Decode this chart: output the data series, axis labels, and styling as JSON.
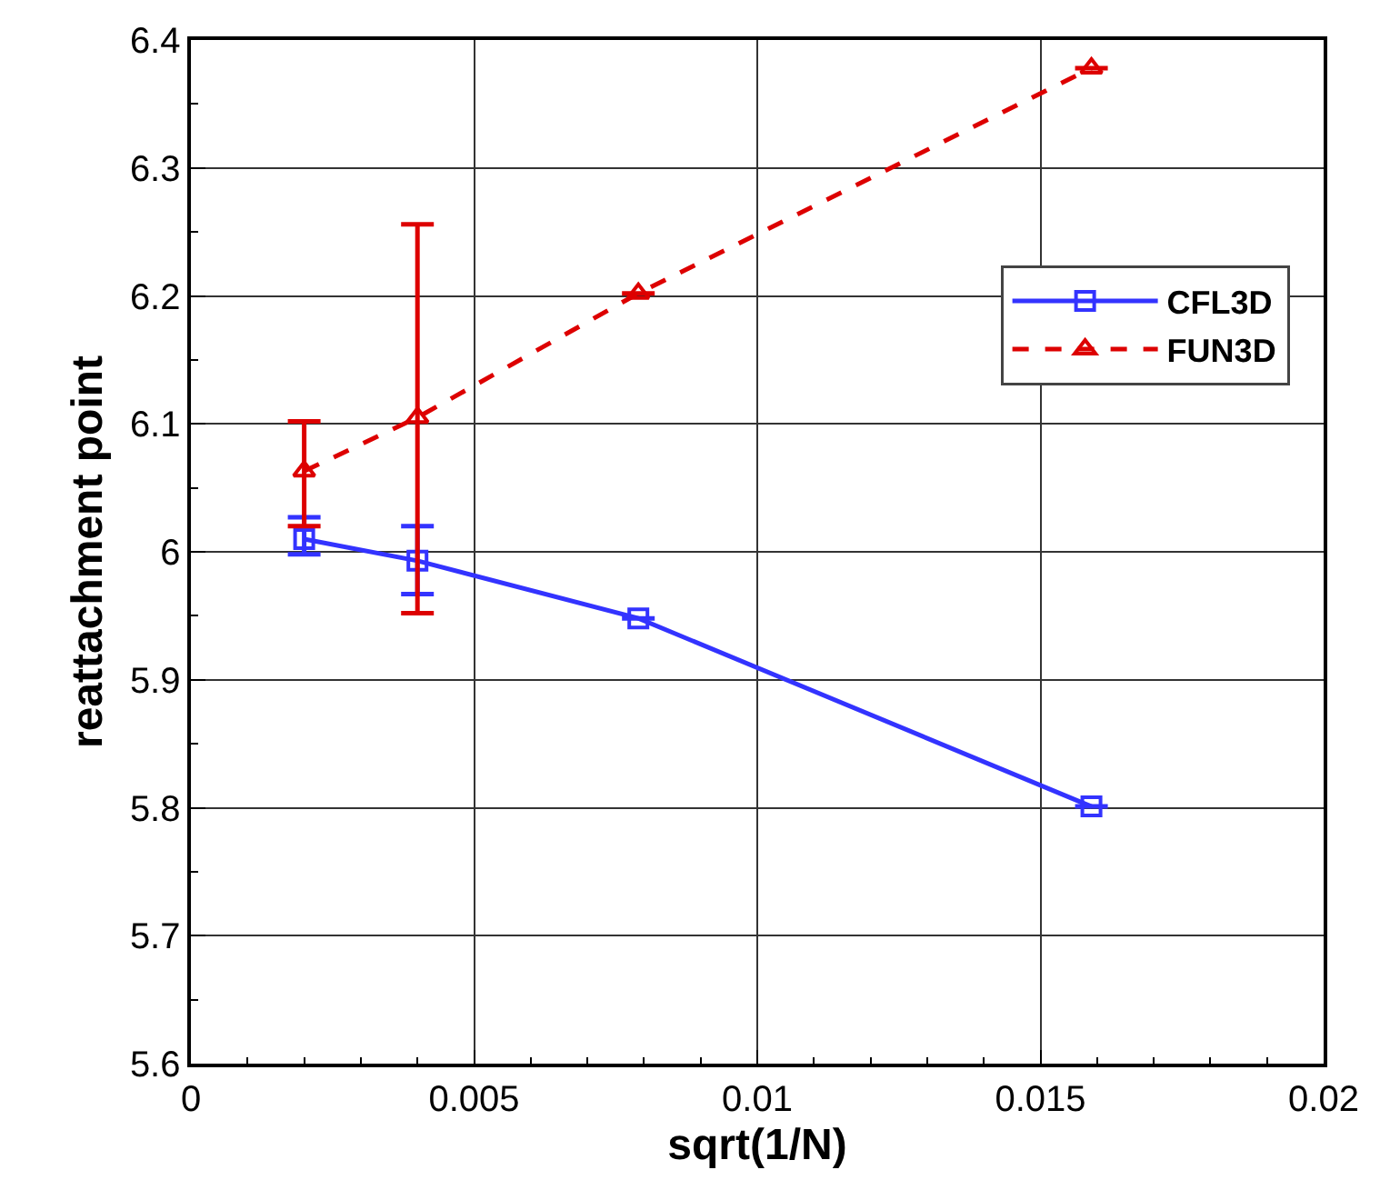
{
  "chart_data": {
    "type": "line",
    "xlabel": "sqrt(1/N)",
    "ylabel": "reattachment point",
    "xlim": [
      0,
      0.02
    ],
    "xticks": [
      0,
      0.005,
      0.01,
      0.015,
      0.02
    ],
    "ylim": [
      5.6,
      6.4
    ],
    "yticks": [
      5.6,
      5.7,
      5.8,
      5.9,
      6,
      6.1,
      6.2,
      6.3,
      6.4
    ],
    "grid": true,
    "legend": "top right",
    "series": [
      {
        "name": "CFL3D",
        "color": "#3333ff",
        "marker": "square",
        "line_style": "solid",
        "x": [
          0.002,
          0.004,
          0.0079,
          0.0159
        ],
        "values": [
          6.01,
          5.993,
          5.948,
          5.801
        ],
        "errors": [
          [
            5.998,
            6.027
          ],
          [
            5.967,
            6.02
          ],
          null,
          null
        ]
      },
      {
        "name": "FUN3D",
        "color": "#dd0000",
        "marker": "triangle",
        "line_style": "dashed",
        "x": [
          0.002,
          0.004,
          0.0079,
          0.0159
        ],
        "values": [
          6.063,
          6.105,
          6.202,
          6.378
        ],
        "errors": [
          [
            6.02,
            6.102
          ],
          [
            5.952,
            6.256
          ],
          null,
          null
        ]
      }
    ]
  }
}
